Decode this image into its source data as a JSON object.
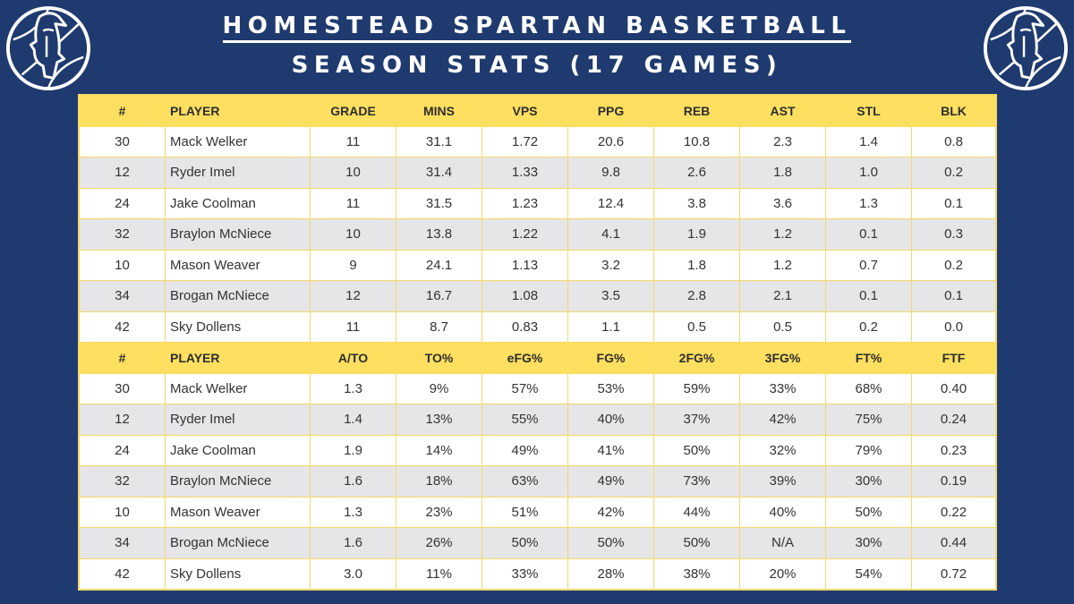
{
  "header": {
    "title": "HOMESTEAD SPARTAN BASKETBALL",
    "subtitle": "SEASON STATS (17 GAMES)",
    "logo_icon": "spartan-helmet-icon",
    "colors": {
      "background": "#1f3a6e",
      "header_row": "#fedf60",
      "alt_row": "#e6e5e8"
    }
  },
  "chart_data": {
    "type": "table",
    "title": "HOMESTEAD SPARTAN BASKETBALL",
    "subtitle": "SEASON STATS (17 GAMES)",
    "sections": [
      {
        "columns": [
          "#",
          "PLAYER",
          "GRADE",
          "MINS",
          "VPS",
          "PPG",
          "REB",
          "AST",
          "STL",
          "BLK"
        ],
        "rows": [
          [
            "30",
            "Mack Welker",
            "11",
            "31.1",
            "1.72",
            "20.6",
            "10.8",
            "2.3",
            "1.4",
            "0.8"
          ],
          [
            "12",
            "Ryder Imel",
            "10",
            "31.4",
            "1.33",
            "9.8",
            "2.6",
            "1.8",
            "1.0",
            "0.2"
          ],
          [
            "24",
            "Jake Coolman",
            "11",
            "31.5",
            "1.23",
            "12.4",
            "3.8",
            "3.6",
            "1.3",
            "0.1"
          ],
          [
            "32",
            "Braylon McNiece",
            "10",
            "13.8",
            "1.22",
            "4.1",
            "1.9",
            "1.2",
            "0.1",
            "0.3"
          ],
          [
            "10",
            "Mason Weaver",
            "9",
            "24.1",
            "1.13",
            "3.2",
            "1.8",
            "1.2",
            "0.7",
            "0.2"
          ],
          [
            "34",
            "Brogan McNiece",
            "12",
            "16.7",
            "1.08",
            "3.5",
            "2.8",
            "2.1",
            "0.1",
            "0.1"
          ],
          [
            "42",
            "Sky Dollens",
            "11",
            "8.7",
            "0.83",
            "1.1",
            "0.5",
            "0.5",
            "0.2",
            "0.0"
          ]
        ]
      },
      {
        "columns": [
          "#",
          "PLAYER",
          "A/TO",
          "TO%",
          "eFG%",
          "FG%",
          "2FG%",
          "3FG%",
          "FT%",
          "FTF"
        ],
        "rows": [
          [
            "30",
            "Mack Welker",
            "1.3",
            "9%",
            "57%",
            "53%",
            "59%",
            "33%",
            "68%",
            "0.40"
          ],
          [
            "12",
            "Ryder Imel",
            "1.4",
            "13%",
            "55%",
            "40%",
            "37%",
            "42%",
            "75%",
            "0.24"
          ],
          [
            "24",
            "Jake Coolman",
            "1.9",
            "14%",
            "49%",
            "41%",
            "50%",
            "32%",
            "79%",
            "0.23"
          ],
          [
            "32",
            "Braylon McNiece",
            "1.6",
            "18%",
            "63%",
            "49%",
            "73%",
            "39%",
            "30%",
            "0.19"
          ],
          [
            "10",
            "Mason Weaver",
            "1.3",
            "23%",
            "51%",
            "42%",
            "44%",
            "40%",
            "50%",
            "0.22"
          ],
          [
            "34",
            "Brogan McNiece",
            "1.6",
            "26%",
            "50%",
            "50%",
            "50%",
            "N/A",
            "30%",
            "0.44"
          ],
          [
            "42",
            "Sky Dollens",
            "3.0",
            "11%",
            "33%",
            "28%",
            "38%",
            "20%",
            "54%",
            "0.72"
          ]
        ]
      }
    ]
  }
}
